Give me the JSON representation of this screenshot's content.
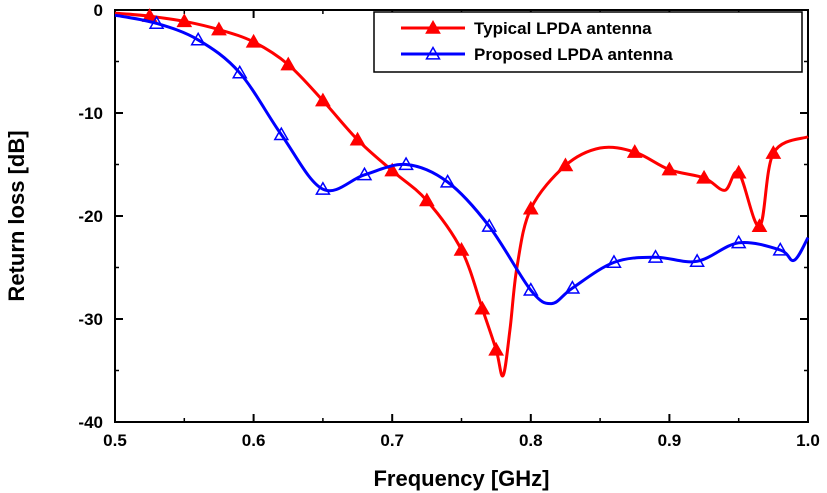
{
  "chart_data": {
    "type": "line",
    "title": "",
    "xlabel": "Frequency [GHz]",
    "ylabel": "Return loss [dB]",
    "xlim": [
      0.5,
      1.0
    ],
    "ylim": [
      -40,
      0
    ],
    "xticks": [
      "0.5",
      "0.6",
      "0.7",
      "0.8",
      "0.9",
      "1.0"
    ],
    "xtick_values": [
      0.5,
      0.6,
      0.7,
      0.8,
      0.9,
      1.0
    ],
    "yticks": [
      "0",
      "-10",
      "-20",
      "-30",
      "-40"
    ],
    "ytick_values": [
      0,
      -10,
      -20,
      -30,
      -40
    ],
    "legend_position": "top-right",
    "grid": false,
    "series": [
      {
        "name": "Typical LPDA antenna",
        "color": "#ff0000",
        "marker": "filled-triangle",
        "x": [
          0.5,
          0.525,
          0.55,
          0.575,
          0.6,
          0.625,
          0.65,
          0.675,
          0.7,
          0.725,
          0.75,
          0.765,
          0.775,
          0.78,
          0.785,
          0.79,
          0.8,
          0.825,
          0.85,
          0.875,
          0.9,
          0.925,
          0.94,
          0.95,
          0.965,
          0.975,
          1.0
        ],
        "y": [
          -0.3,
          -0.6,
          -1.1,
          -1.9,
          -3.1,
          -5.3,
          -8.8,
          -12.6,
          -15.6,
          -18.5,
          -23.3,
          -29.0,
          -33.0,
          -35.5,
          -31.0,
          -25.0,
          -19.3,
          -15.1,
          -13.4,
          -13.8,
          -15.5,
          -16.3,
          -17.5,
          -15.8,
          -21.0,
          -13.9,
          -12.3
        ]
      },
      {
        "name": "Proposed LPDA antenna",
        "color": "#0000ff",
        "marker": "open-triangle",
        "x": [
          0.5,
          0.53,
          0.56,
          0.59,
          0.62,
          0.65,
          0.68,
          0.71,
          0.74,
          0.77,
          0.8,
          0.815,
          0.83,
          0.86,
          0.89,
          0.92,
          0.95,
          0.98,
          0.99,
          1.0
        ],
        "y": [
          -0.5,
          -1.3,
          -2.9,
          -6.1,
          -12.1,
          -17.4,
          -16.0,
          -15.0,
          -16.7,
          -21.0,
          -27.2,
          -28.5,
          -27.0,
          -24.5,
          -24.0,
          -24.4,
          -22.6,
          -23.3,
          -24.3,
          -22.1
        ]
      }
    ]
  }
}
